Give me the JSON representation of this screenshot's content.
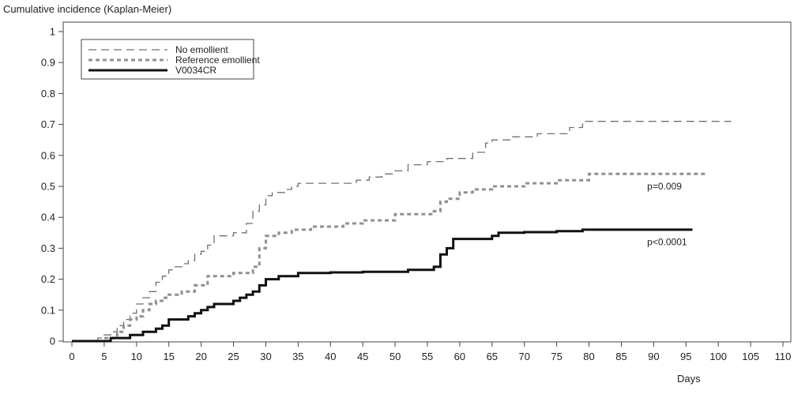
{
  "chart_data": {
    "type": "line",
    "title": "",
    "ylabel": "Cumulative incidence (Kaplan-Meier)",
    "xlabel": "Days",
    "xlim": [
      0,
      110
    ],
    "ylim": [
      0,
      1
    ],
    "x_ticks": [
      0,
      5,
      10,
      15,
      20,
      25,
      30,
      35,
      40,
      45,
      50,
      55,
      60,
      65,
      70,
      75,
      80,
      85,
      90,
      95,
      100,
      105,
      110
    ],
    "y_ticks": [
      0,
      0.1,
      0.2,
      0.3,
      0.4,
      0.5,
      0.6,
      0.7,
      0.8,
      0.9,
      1
    ],
    "y_tick_labels": [
      "0",
      "0.1",
      "0.2",
      "0.3",
      "0.4",
      "0.5",
      "0.6",
      "0.7",
      "0.8",
      "0.9",
      "1"
    ],
    "grid": false,
    "legend": "top-left",
    "step": true,
    "series": [
      {
        "name": "No emollient",
        "style": "long-dash",
        "color": "#707070",
        "x": [
          0,
          4,
          5,
          6,
          7,
          8,
          9,
          10,
          11,
          12,
          13,
          14,
          15,
          16,
          17,
          18,
          19,
          20,
          21,
          22,
          25,
          27,
          28,
          29,
          30,
          31,
          33,
          34,
          35,
          44,
          46,
          48,
          50,
          52,
          55,
          58,
          62,
          64,
          65,
          68,
          72,
          77,
          79,
          102
        ],
        "y": [
          0,
          0.01,
          0.02,
          0.03,
          0.05,
          0.07,
          0.09,
          0.12,
          0.14,
          0.16,
          0.19,
          0.21,
          0.23,
          0.24,
          0.25,
          0.26,
          0.28,
          0.29,
          0.31,
          0.34,
          0.35,
          0.38,
          0.42,
          0.44,
          0.47,
          0.48,
          0.49,
          0.5,
          0.51,
          0.52,
          0.53,
          0.54,
          0.55,
          0.57,
          0.58,
          0.59,
          0.61,
          0.64,
          0.65,
          0.66,
          0.67,
          0.69,
          0.71,
          0.71
        ]
      },
      {
        "name": "Reference emollient",
        "style": "short-dash",
        "color": "#909090",
        "x": [
          0,
          5,
          7,
          8,
          9,
          10,
          11,
          12,
          13,
          14,
          15,
          17,
          19,
          21,
          25,
          28,
          29,
          30,
          32,
          34,
          37,
          42,
          45,
          50,
          56,
          57,
          58,
          60,
          62,
          65,
          70,
          75,
          80,
          98
        ],
        "y": [
          0,
          0.01,
          0.03,
          0.05,
          0.07,
          0.08,
          0.1,
          0.12,
          0.13,
          0.14,
          0.15,
          0.16,
          0.18,
          0.21,
          0.22,
          0.24,
          0.3,
          0.34,
          0.35,
          0.36,
          0.37,
          0.38,
          0.39,
          0.41,
          0.42,
          0.45,
          0.46,
          0.48,
          0.49,
          0.5,
          0.51,
          0.52,
          0.54,
          0.54
        ]
      },
      {
        "name": "V0034CR",
        "style": "solid",
        "color": "#111111",
        "x": [
          0,
          6,
          9,
          11,
          13,
          14,
          15,
          18,
          19,
          20,
          21,
          22,
          25,
          26,
          27,
          28,
          29,
          30,
          32,
          35,
          40,
          45,
          52,
          56,
          57,
          58,
          59,
          65,
          66,
          70,
          75,
          79,
          96
        ],
        "y": [
          0,
          0.01,
          0.02,
          0.03,
          0.04,
          0.05,
          0.07,
          0.08,
          0.09,
          0.1,
          0.11,
          0.12,
          0.13,
          0.14,
          0.15,
          0.16,
          0.18,
          0.2,
          0.21,
          0.22,
          0.222,
          0.224,
          0.23,
          0.24,
          0.28,
          0.3,
          0.33,
          0.34,
          0.35,
          0.352,
          0.355,
          0.36,
          0.36
        ]
      }
    ],
    "annotations": [
      {
        "text": "p=0.009",
        "x": 89,
        "y": 0.49
      },
      {
        "text": "p<0.0001",
        "x": 89,
        "y": 0.31
      }
    ]
  }
}
